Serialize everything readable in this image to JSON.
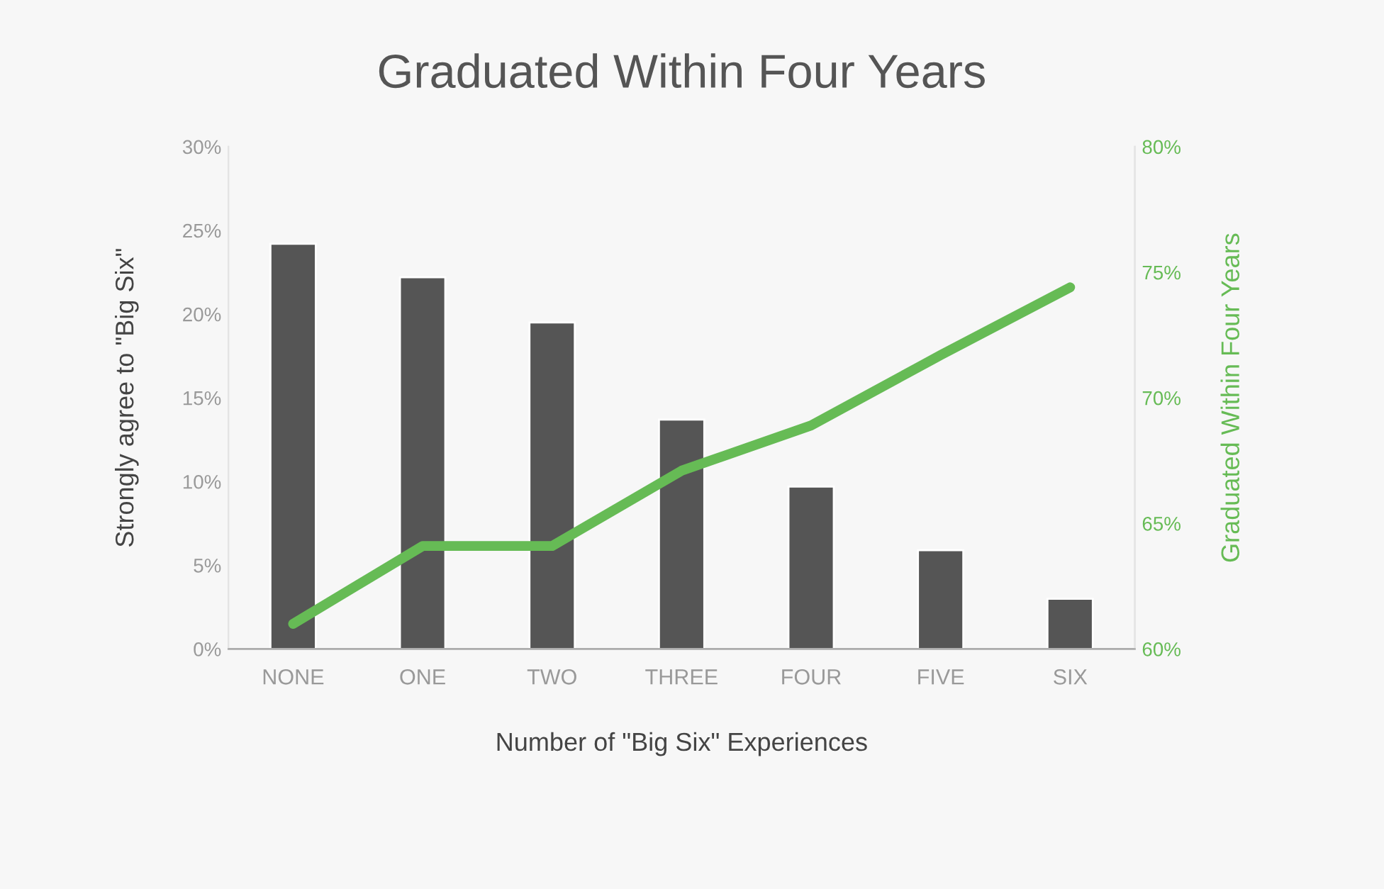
{
  "chart_data": {
    "type": "bar",
    "title": "Graduated Within Four Years",
    "xlabel": "Number of \"Big Six\" Experiences",
    "ylabel": "Strongly agree to \"Big Six\"",
    "y2label": "Graduated Within Four Years",
    "categories": [
      "NONE",
      "ONE",
      "TWO",
      "THREE",
      "FOUR",
      "FIVE",
      "SIX"
    ],
    "series": [
      {
        "color": "#555555",
        "values": [
          24.2,
          22.2,
          19.5,
          13.7,
          9.7,
          5.9,
          3.0
        ]
      },
      {
        "type": "line",
        "axis": "y2",
        "color": "#66bb55",
        "values": [
          61.0,
          64.1,
          64.1,
          67.1,
          68.9,
          71.7,
          74.4
        ]
      }
    ],
    "ylim": [
      0,
      30
    ],
    "yticks": [
      {
        "value": 0,
        "label": "0%"
      },
      {
        "value": 5,
        "label": "5%"
      },
      {
        "value": 10,
        "label": "10%"
      },
      {
        "value": 15,
        "label": "15%"
      },
      {
        "value": 20,
        "label": "20%"
      },
      {
        "value": 25,
        "label": "25%"
      },
      {
        "value": 30,
        "label": "30%"
      }
    ],
    "y2lim": [
      60,
      80
    ],
    "y2ticks": [
      {
        "value": 60,
        "label": "60%"
      },
      {
        "value": 65,
        "label": "65%"
      },
      {
        "value": 70,
        "label": "70%"
      },
      {
        "value": 75,
        "label": "75%"
      },
      {
        "value": 80,
        "label": "80%"
      }
    ],
    "grid": false,
    "legend": false,
    "marker": "none",
    "line_style": "solid"
  }
}
